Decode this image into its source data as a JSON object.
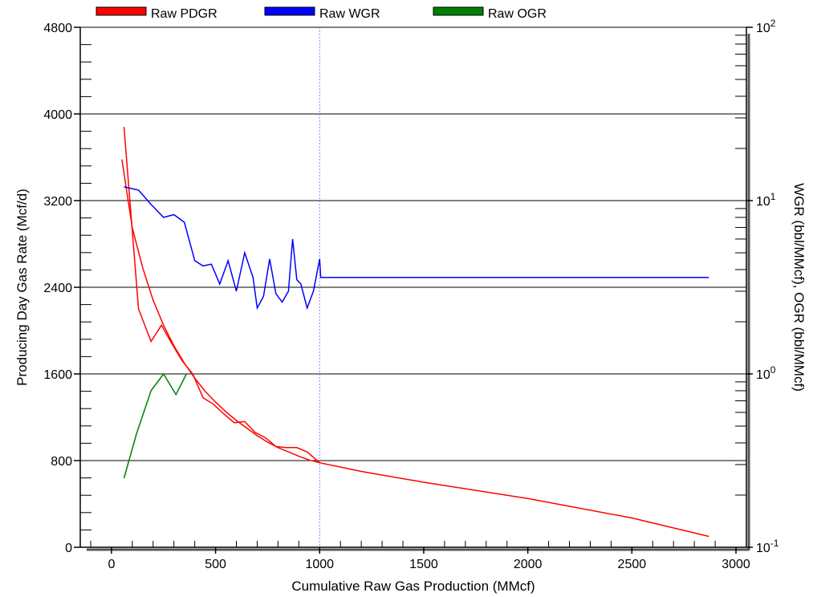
{
  "chart_data": {
    "type": "line",
    "xlabel": "Cumulative Raw Gas Production (MMcf)",
    "ylabel": "Producing Day Gas Rate (Mcf/d)",
    "y2label": "WGR (bbl/MMcf), OGR (bbl/MMcf)",
    "xlim": [
      -150,
      3050
    ],
    "ylim": [
      0,
      4800
    ],
    "y2lim": [
      0.1,
      100
    ],
    "y2scale": "log",
    "x_ticks": [
      0,
      500,
      1000,
      1500,
      2000,
      2500,
      3000
    ],
    "x_tick_labels": [
      "0",
      "500",
      "1000",
      "1500",
      "2000",
      "2500",
      "3000"
    ],
    "y_ticks": [
      0,
      800,
      1600,
      2400,
      3200,
      4000,
      4800
    ],
    "y_tick_labels": [
      "0",
      "800",
      "1600",
      "2400",
      "3200",
      "4000",
      "4800"
    ],
    "y2_ticks": [
      {
        "value": 0.1,
        "base": "10",
        "exp": "-1"
      },
      {
        "value": 1,
        "base": "10",
        "exp": "0"
      },
      {
        "value": 10,
        "base": "10",
        "exp": "1"
      },
      {
        "value": 100,
        "base": "10",
        "exp": "2"
      }
    ],
    "grid_y": true,
    "vertical_marker_x": 1000,
    "legend_position": "top",
    "series": [
      {
        "name": "Raw PDGR",
        "axis": "left",
        "color": "#ff0000",
        "x": [
          60,
          130,
          190,
          240,
          290,
          340,
          390,
          440,
          490,
          540,
          590,
          640,
          690,
          740,
          790,
          840,
          890,
          940,
          1000
        ],
        "y": [
          3880,
          2200,
          1900,
          2050,
          1880,
          1720,
          1600,
          1380,
          1320,
          1230,
          1150,
          1160,
          1060,
          1010,
          930,
          920,
          920,
          880,
          780
        ]
      },
      {
        "name": "Raw PDGR",
        "axis": "left",
        "color": "#ff0000",
        "x": [
          50,
          100,
          150,
          200,
          250,
          300,
          350,
          400,
          450,
          500,
          550,
          600,
          650,
          700,
          750,
          800,
          850,
          900,
          950,
          1000,
          1200,
          1500,
          2000,
          2500,
          2870
        ],
        "y": [
          3580,
          2950,
          2580,
          2280,
          2050,
          1860,
          1700,
          1560,
          1440,
          1340,
          1250,
          1170,
          1100,
          1030,
          970,
          920,
          880,
          840,
          805,
          780,
          700,
          600,
          450,
          270,
          100
        ]
      },
      {
        "name": "Raw WGR",
        "axis": "right",
        "color": "#0000ff",
        "x": [
          60,
          130,
          190,
          250,
          300,
          350,
          400,
          440,
          480,
          520,
          560,
          600,
          640,
          680,
          700,
          730,
          760,
          790,
          820,
          850,
          870,
          890,
          910,
          940,
          970,
          1000,
          1005,
          2870
        ],
        "y": [
          12.0,
          11.5,
          9.5,
          8.0,
          8.3,
          7.5,
          4.5,
          4.2,
          4.3,
          3.3,
          4.5,
          3.0,
          5.0,
          3.6,
          2.4,
          2.8,
          4.6,
          2.9,
          2.6,
          3.0,
          6.0,
          3.5,
          3.3,
          2.4,
          3.0,
          4.6,
          3.6,
          3.6
        ]
      },
      {
        "name": "Raw OGR",
        "axis": "right",
        "color": "#008000",
        "x": [
          60,
          120,
          190,
          250,
          310,
          360
        ],
        "y": [
          0.25,
          0.45,
          0.8,
          1.0,
          0.76,
          1.0
        ]
      }
    ]
  },
  "legend": [
    {
      "label": "Raw PDGR",
      "color": "#ff0000"
    },
    {
      "label": "Raw WGR",
      "color": "#0000ff"
    },
    {
      "label": "Raw OGR",
      "color": "#008000"
    }
  ]
}
